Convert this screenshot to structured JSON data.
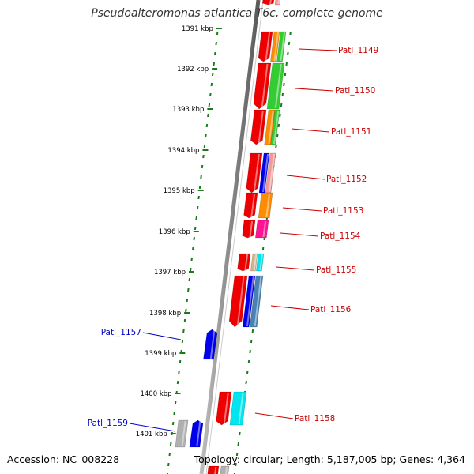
{
  "title": "Pseudoalteromonas atlantica T6c, complete genome",
  "accession_label": "Accession: NC_008228",
  "topology_label": "Topology: circular; Length: 5,187,005 bp; Genes: 4,364",
  "colors": {
    "tick_green": "#1a7a1a",
    "backbone": "#8a8a8a",
    "label_red": "#cc0000",
    "label_blue": "#0000cc"
  },
  "axis_labels": [
    "1391 kbp",
    "1392 kbp",
    "1393 kbp",
    "1394 kbp",
    "1395 kbp",
    "1396 kbp",
    "1397 kbp",
    "1398 kbp",
    "1399 kbp",
    "1400 kbp",
    "1401 kbp"
  ],
  "gene_labels": [
    {
      "name": "Patl_1149",
      "strand": "forward"
    },
    {
      "name": "Patl_1150",
      "strand": "forward"
    },
    {
      "name": "Patl_1151",
      "strand": "forward"
    },
    {
      "name": "Patl_1152",
      "strand": "forward"
    },
    {
      "name": "Patl_1153",
      "strand": "forward"
    },
    {
      "name": "Patl_1154",
      "strand": "forward"
    },
    {
      "name": "Patl_1155",
      "strand": "forward"
    },
    {
      "name": "Patl_1156",
      "strand": "forward"
    },
    {
      "name": "Patl_1157",
      "strand": "reverse"
    },
    {
      "name": "Patl_1158",
      "strand": "forward"
    },
    {
      "name": "Patl_1159",
      "strand": "reverse"
    }
  ],
  "feature_colors": [
    "#ee0000",
    "#ff8c00",
    "#33cc33",
    "#0000ee",
    "#f49a9a",
    "#ff1493",
    "#d2b48c",
    "#00e5ee",
    "#4682b4",
    "#20b2aa",
    "#b0b0b0",
    "#66dd44",
    "#e6a050"
  ]
}
